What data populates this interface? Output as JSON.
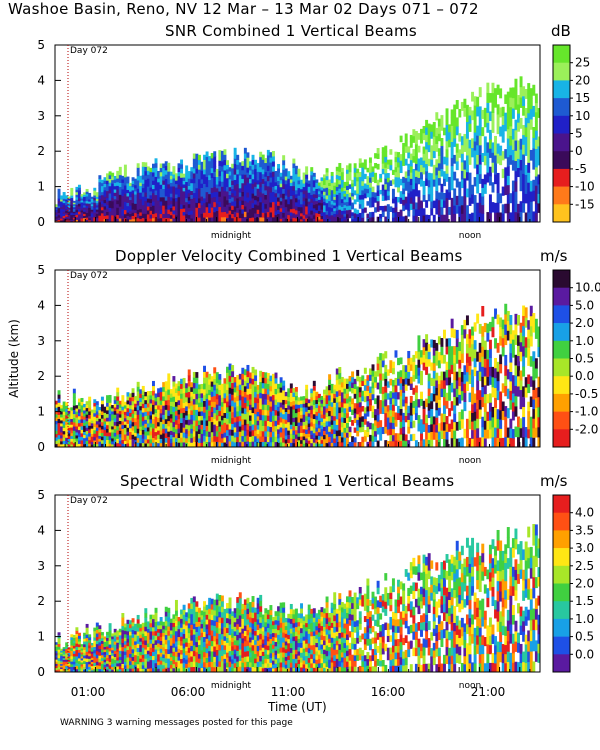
{
  "header": {
    "title": "Washoe Basin, Reno, NV  12 Mar – 13 Mar 02 Days 071 – 072"
  },
  "footer": {
    "warning": "WARNING  3 warning messages posted for this page"
  },
  "chart_data": [
    {
      "type": "heatmap",
      "title": "SNR Combined 1 Vertical Beams",
      "unit": "dB",
      "ylabel": "",
      "xlabel": "",
      "ylim": [
        0,
        5
      ],
      "yticks": [
        "0",
        "1",
        "2",
        "3",
        "4",
        "5"
      ],
      "day_marker": "Day 072",
      "time_markers": [
        "midnight",
        "noon"
      ],
      "colorbar": {
        "labels": [
          "-15",
          "-10",
          "-5",
          "0",
          "5",
          "10",
          "15",
          "20",
          "25"
        ],
        "colors": [
          "#66e62b",
          "#9bf05a",
          "#18b4e6",
          "#1e5ad2",
          "#2020c8",
          "#4a148c",
          "#3a0a5a",
          "#e61e1e",
          "#ff7a1a",
          "#ffc31e"
        ]
      },
      "signal_top_km": [
        0.8,
        1.0,
        1.4,
        1.6,
        1.7,
        1.9,
        1.7,
        1.2,
        1.5,
        2.0,
        2.8,
        3.5,
        3.8,
        3.9
      ]
    },
    {
      "type": "heatmap",
      "title": "Doppler Velocity Combined 1 Vertical Beams",
      "unit": "m/s",
      "ylabel": "Altitude (km)",
      "xlabel": "",
      "ylim": [
        0,
        5
      ],
      "yticks": [
        "0",
        "1",
        "2",
        "3",
        "4",
        "5"
      ],
      "day_marker": "Day 072",
      "time_markers": [
        "midnight",
        "noon"
      ],
      "colorbar": {
        "labels": [
          "10.0",
          "5.0",
          "2.0",
          "1.0",
          "0.5",
          "0.0",
          "-0.5",
          "-1.0",
          "-2.0"
        ],
        "colors": [
          "#2a0a30",
          "#5a1aa0",
          "#1e50e6",
          "#18a0e6",
          "#40d040",
          "#a8e628",
          "#ffe614",
          "#ffa000",
          "#ff5014",
          "#e61e1e"
        ]
      },
      "signal_top_km": [
        1.5,
        1.2,
        1.6,
        1.8,
        2.0,
        2.1,
        1.8,
        1.6,
        2.2,
        2.5,
        3.0,
        3.6,
        3.8,
        3.9
      ]
    },
    {
      "type": "heatmap",
      "title": "Spectral Width Combined 1 Vertical Beams",
      "unit": "m/s",
      "ylabel": "",
      "xlabel": "Time (UT)",
      "ylim": [
        0,
        5
      ],
      "yticks": [
        "0",
        "1",
        "2",
        "3",
        "4",
        "5"
      ],
      "xticks": [
        "01:00",
        "06:00",
        "11:00",
        "16:00",
        "21:00"
      ],
      "day_marker": "Day 072",
      "time_markers": [
        "midnight",
        "noon"
      ],
      "colorbar": {
        "labels": [
          "4.0",
          "3.5",
          "3.0",
          "2.5",
          "2.0",
          "1.5",
          "1.0",
          "0.5",
          "0.0"
        ],
        "colors": [
          "#e61e1e",
          "#ff5014",
          "#ffa000",
          "#ffe614",
          "#a8e628",
          "#40d040",
          "#28c8a0",
          "#18a0e6",
          "#1e50e6",
          "#5a1aa0"
        ]
      },
      "signal_top_km": [
        0.9,
        1.1,
        1.5,
        1.7,
        1.9,
        2.0,
        1.8,
        1.7,
        2.3,
        2.7,
        3.1,
        3.5,
        3.8,
        3.9
      ]
    }
  ]
}
